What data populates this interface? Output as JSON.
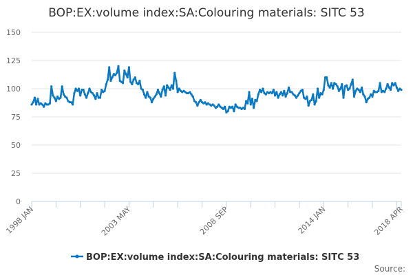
{
  "chart_data": {
    "type": "line",
    "title": "BOP:EX:volume index:SA:Colouring materials: SITC 53",
    "xlabel": "",
    "ylabel": "",
    "x_start": "1998 JAN",
    "x_end": "2018 APR",
    "x_frequency": "monthly",
    "x_tick_labels": [
      "1998 JAN",
      "2003 MAY",
      "2008 SEP",
      "2014 JAN",
      "2018 APR"
    ],
    "y_ticks": [
      0,
      25,
      50,
      75,
      100,
      125,
      150
    ],
    "ylim": [
      0,
      150
    ],
    "grid": "horizontal",
    "legend_position": "bottom",
    "color": "#0a78c2",
    "series": [
      {
        "name": "BOP:EX:volume index:SA:Colouring materials: SITC 53",
        "values": [
          86,
          88,
          92,
          86,
          91,
          86,
          87,
          86,
          84,
          87,
          86,
          86,
          87,
          102,
          94,
          92,
          89,
          93,
          91,
          92,
          102,
          95,
          93,
          92,
          89,
          88,
          88,
          86,
          96,
          100,
          98,
          100,
          94,
          99,
          99,
          95,
          92,
          96,
          100,
          97,
          96,
          94,
          91,
          96,
          92,
          92,
          99,
          97,
          98,
          104,
          108,
          119,
          107,
          110,
          113,
          112,
          114,
          120,
          107,
          106,
          105,
          116,
          113,
          110,
          119,
          106,
          104,
          108,
          110,
          105,
          104,
          107,
          100,
          99,
          95,
          92,
          97,
          93,
          92,
          88,
          91,
          93,
          95,
          99,
          96,
          93,
          99,
          102,
          94,
          103,
          101,
          99,
          103,
          100,
          114,
          107,
          97,
          100,
          98,
          97,
          98,
          97,
          96,
          96,
          97,
          95,
          93,
          89,
          88,
          85,
          88,
          90,
          88,
          87,
          88,
          86,
          87,
          86,
          85,
          86,
          85,
          83,
          84,
          86,
          84,
          83,
          82,
          84,
          79,
          80,
          84,
          83,
          84,
          80,
          86,
          84,
          83,
          83,
          82,
          83,
          82,
          89,
          87,
          97,
          86,
          91,
          83,
          90,
          89,
          95,
          99,
          97,
          100,
          96,
          95,
          97,
          96,
          97,
          96,
          99,
          94,
          97,
          92,
          95,
          97,
          94,
          98,
          93,
          96,
          101,
          97,
          97,
          95,
          94,
          92,
          94,
          96,
          98,
          99,
          92,
          91,
          93,
          85,
          89,
          90,
          95,
          86,
          89,
          100,
          92,
          96,
          95,
          99,
          110,
          110,
          103,
          101,
          105,
          100,
          105,
          104,
          102,
          98,
          100,
          104,
          92,
          102,
          103,
          99,
          100,
          104,
          108,
          93,
          98,
          100,
          99,
          97,
          101,
          95,
          93,
          88,
          91,
          92,
          95,
          93,
          98,
          97,
          97,
          98,
          105,
          97,
          98,
          97,
          100,
          104,
          101,
          99,
          105,
          103,
          105,
          101,
          98,
          100,
          99
        ]
      }
    ],
    "source_label": "Source:"
  }
}
